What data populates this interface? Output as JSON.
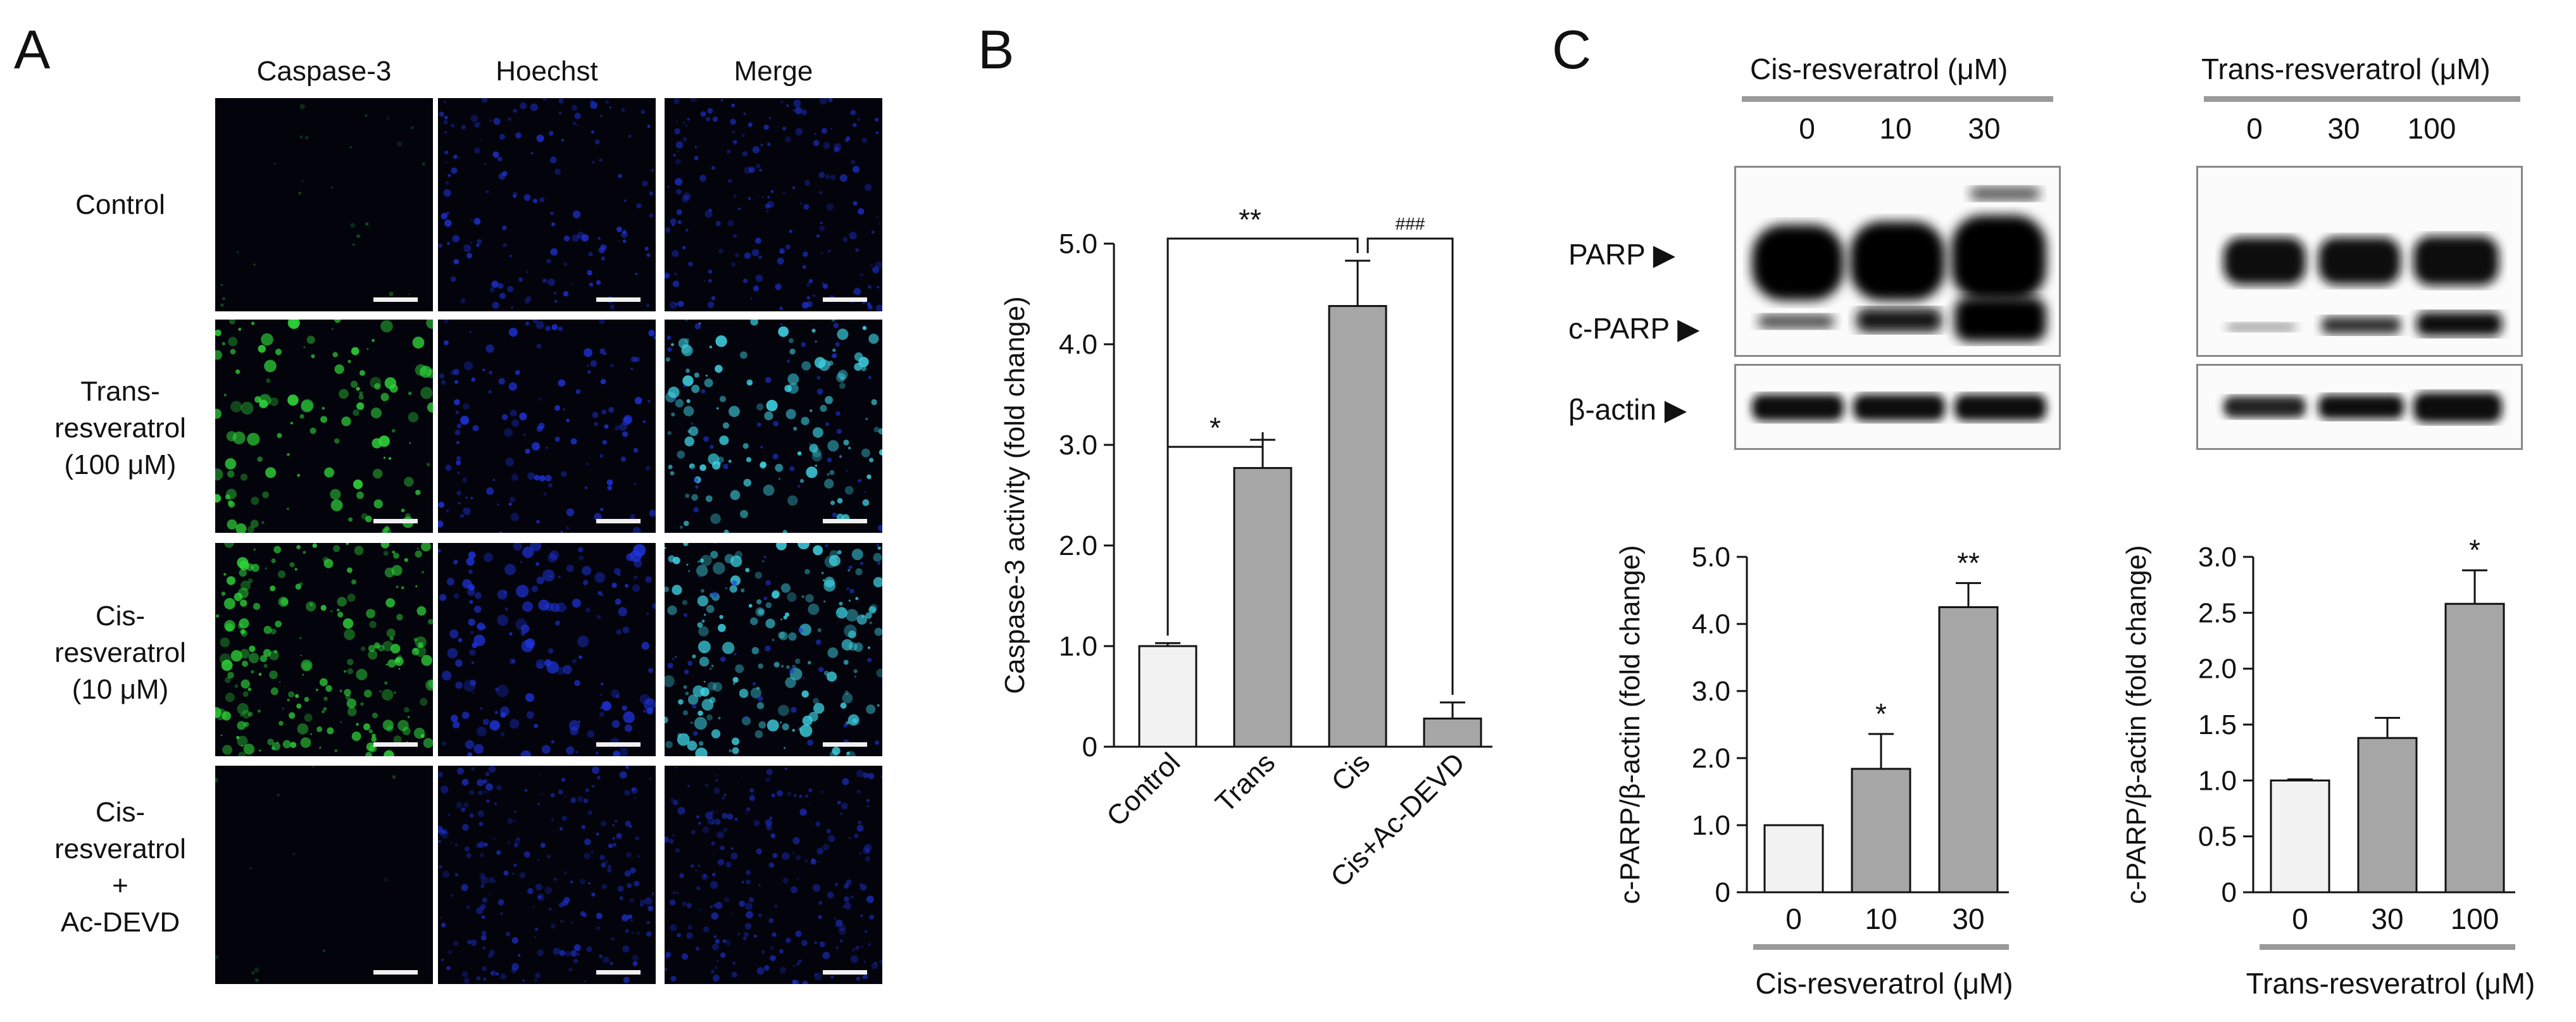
{
  "panel_labels": [
    "A",
    "B",
    "C"
  ],
  "panel_a": {
    "columns": [
      "Caspase-3",
      "Hoechst",
      "Merge"
    ],
    "rows": [
      [
        "Control"
      ],
      [
        "Trans-",
        "resveratrol",
        "(100 μM)"
      ],
      [
        "Cis-",
        "resveratrol",
        "(10 μM)"
      ],
      [
        "Cis-",
        "resveratrol",
        "+",
        "Ac-DEVD"
      ]
    ],
    "colors": {
      "green": "#2fd63a",
      "blue": "#1f35e0",
      "cyan": "#3fd6e6",
      "dark": "#03030c"
    }
  },
  "panel_c_blots": {
    "left": {
      "title": "Cis-resveratrol (μM)",
      "concentrations": [
        "0",
        "10",
        "30"
      ]
    },
    "right": {
      "title": "Trans-resveratrol (μM)",
      "concentrations": [
        "0",
        "30",
        "100"
      ]
    },
    "band_labels": [
      "PARP",
      "c-PARP",
      "β-actin"
    ]
  },
  "chart_data": [
    {
      "type": "bar",
      "panel": "B",
      "categories": [
        "Control",
        "Trans",
        "Cis",
        "Cis+Ac-DEVD"
      ],
      "values": [
        1.0,
        2.77,
        4.38,
        0.28
      ],
      "errors": [
        0.03,
        0.28,
        0.45,
        0.16
      ],
      "ylabel": "Caspase-3 activity (fold change)",
      "ylim": [
        0,
        5.0
      ],
      "yticks": [
        "0",
        "1.0",
        "2.0",
        "3.0",
        "4.0",
        "5.0"
      ],
      "bar_colors": [
        "#f2f2f2",
        "#a6a6a6",
        "#a6a6a6",
        "#a6a6a6"
      ],
      "annotations": [
        {
          "text": "*",
          "between": [
            "Control",
            "Trans"
          ]
        },
        {
          "text": "**",
          "between": [
            "Control",
            "Cis"
          ]
        },
        {
          "text": "###",
          "between": [
            "Cis",
            "Cis+Ac-DEVD"
          ]
        }
      ]
    },
    {
      "type": "bar",
      "panel": "C-left",
      "categories": [
        "0",
        "10",
        "30"
      ],
      "values": [
        1.0,
        1.84,
        4.25
      ],
      "errors": [
        0.0,
        0.52,
        0.36
      ],
      "xlabel": "Cis-resveratrol (μM)",
      "ylabel": "c-PARP/β-actin (fold change)",
      "ylim": [
        0,
        5.0
      ],
      "yticks": [
        "0",
        "1.0",
        "2.0",
        "3.0",
        "4.0",
        "5.0"
      ],
      "bar_colors": [
        "#f2f2f2",
        "#a6a6a6",
        "#a6a6a6"
      ],
      "annotations": [
        "",
        "*",
        "**"
      ]
    },
    {
      "type": "bar",
      "panel": "C-right",
      "categories": [
        "0",
        "30",
        "100"
      ],
      "values": [
        1.0,
        1.38,
        2.58
      ],
      "errors": [
        0.01,
        0.18,
        0.3
      ],
      "xlabel": "Trans-resveratrol (μM)",
      "ylabel": "c-PARP/β-actin (fold change)",
      "ylim": [
        0,
        3.0
      ],
      "yticks": [
        "0",
        "0.5",
        "1.0",
        "1.5",
        "2.0",
        "2.5",
        "3.0"
      ],
      "bar_colors": [
        "#f2f2f2",
        "#a6a6a6",
        "#a6a6a6"
      ],
      "annotations": [
        "",
        "",
        "*"
      ]
    }
  ]
}
